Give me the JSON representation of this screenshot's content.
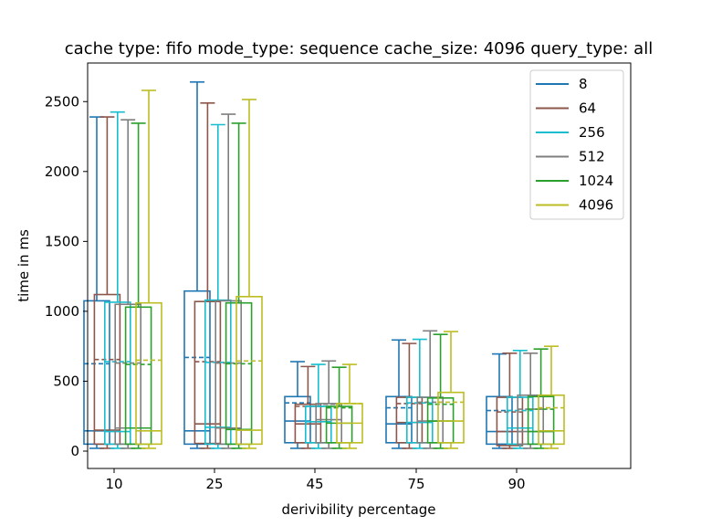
{
  "chart_data": {
    "type": "box",
    "title": "cache type: fifo mode_type: sequence cache_size: 4096 query_type: all",
    "xlabel": "derivibility percentage",
    "ylabel": "time in ms",
    "categories": [
      "10",
      "25",
      "45",
      "75",
      "90"
    ],
    "ylim": [
      -130,
      2800
    ],
    "yticks": [
      0,
      500,
      1000,
      1500,
      2000,
      2500
    ],
    "legend_position": "top-right",
    "series": [
      {
        "name": "8",
        "color": "#1f77b4",
        "boxes": [
          {
            "category": "10",
            "lo": 20,
            "q1": 50,
            "median": 145,
            "mean": 625,
            "q3": 1075,
            "hi": 2390
          },
          {
            "category": "25",
            "lo": 20,
            "q1": 50,
            "median": 145,
            "mean": 670,
            "q3": 1145,
            "hi": 2640
          },
          {
            "category": "45",
            "lo": 20,
            "q1": 60,
            "median": 215,
            "mean": 345,
            "q3": 390,
            "hi": 640
          },
          {
            "category": "75",
            "lo": 20,
            "q1": 60,
            "median": 195,
            "mean": 310,
            "q3": 390,
            "hi": 795
          },
          {
            "category": "90",
            "lo": 20,
            "q1": 50,
            "median": 140,
            "mean": 290,
            "q3": 390,
            "hi": 695
          }
        ]
      },
      {
        "name": "64",
        "color": "#8c564b",
        "boxes": [
          {
            "category": "10",
            "lo": 20,
            "q1": 50,
            "median": 150,
            "mean": 655,
            "q3": 1120,
            "hi": 2390
          },
          {
            "category": "25",
            "lo": 20,
            "q1": 55,
            "median": 195,
            "mean": 640,
            "q3": 1070,
            "hi": 2490
          },
          {
            "category": "45",
            "lo": 20,
            "q1": 60,
            "median": 195,
            "mean": 320,
            "q3": 335,
            "hi": 605
          },
          {
            "category": "75",
            "lo": 20,
            "q1": 60,
            "median": 205,
            "mean": 340,
            "q3": 385,
            "hi": 770
          },
          {
            "category": "90",
            "lo": 20,
            "q1": 40,
            "median": 140,
            "mean": 280,
            "q3": 385,
            "hi": 700
          }
        ]
      },
      {
        "name": "256",
        "color": "#17becf",
        "boxes": [
          {
            "category": "10",
            "lo": 20,
            "q1": 50,
            "median": 140,
            "mean": 640,
            "q3": 1065,
            "hi": 2425
          },
          {
            "category": "25",
            "lo": 20,
            "q1": 50,
            "median": 170,
            "mean": 635,
            "q3": 1080,
            "hi": 2335
          },
          {
            "category": "45",
            "lo": 20,
            "q1": 60,
            "median": 210,
            "mean": 320,
            "q3": 320,
            "hi": 620
          },
          {
            "category": "75",
            "lo": 20,
            "q1": 60,
            "median": 205,
            "mean": 345,
            "q3": 385,
            "hi": 800
          },
          {
            "category": "90",
            "lo": 20,
            "q1": 50,
            "median": 165,
            "mean": 290,
            "q3": 385,
            "hi": 720
          }
        ]
      },
      {
        "name": "512",
        "color": "#7f7f7f",
        "boxes": [
          {
            "category": "10",
            "lo": 20,
            "q1": 50,
            "median": 165,
            "mean": 630,
            "q3": 1050,
            "hi": 2370
          },
          {
            "category": "25",
            "lo": 20,
            "q1": 50,
            "median": 165,
            "mean": 630,
            "q3": 1075,
            "hi": 2410
          },
          {
            "category": "45",
            "lo": 20,
            "q1": 60,
            "median": 225,
            "mean": 335,
            "q3": 340,
            "hi": 645
          },
          {
            "category": "75",
            "lo": 20,
            "q1": 60,
            "median": 215,
            "mean": 350,
            "q3": 385,
            "hi": 860
          },
          {
            "category": "90",
            "lo": 20,
            "q1": 50,
            "median": 140,
            "mean": 300,
            "q3": 400,
            "hi": 700
          }
        ]
      },
      {
        "name": "1024",
        "color": "#2ca02c",
        "boxes": [
          {
            "category": "10",
            "lo": 20,
            "q1": 50,
            "median": 165,
            "mean": 620,
            "q3": 1030,
            "hi": 2345
          },
          {
            "category": "25",
            "lo": 20,
            "q1": 50,
            "median": 155,
            "mean": 625,
            "q3": 1060,
            "hi": 2345
          },
          {
            "category": "45",
            "lo": 20,
            "q1": 60,
            "median": 200,
            "mean": 310,
            "q3": 320,
            "hi": 600
          },
          {
            "category": "75",
            "lo": 20,
            "q1": 60,
            "median": 215,
            "mean": 335,
            "q3": 380,
            "hi": 835
          },
          {
            "category": "90",
            "lo": 20,
            "q1": 50,
            "median": 140,
            "mean": 300,
            "q3": 390,
            "hi": 730
          }
        ]
      },
      {
        "name": "4096",
        "color": "#bcbd22",
        "boxes": [
          {
            "category": "10",
            "lo": 20,
            "q1": 50,
            "median": 145,
            "mean": 650,
            "q3": 1060,
            "hi": 2580
          },
          {
            "category": "25",
            "lo": 20,
            "q1": 50,
            "median": 150,
            "mean": 645,
            "q3": 1105,
            "hi": 2515
          },
          {
            "category": "45",
            "lo": 20,
            "q1": 60,
            "median": 200,
            "mean": 340,
            "q3": 340,
            "hi": 620
          },
          {
            "category": "75",
            "lo": 20,
            "q1": 60,
            "median": 215,
            "mean": 350,
            "q3": 420,
            "hi": 855
          },
          {
            "category": "90",
            "lo": 20,
            "q1": 50,
            "median": 145,
            "mean": 310,
            "q3": 400,
            "hi": 750
          }
        ]
      }
    ]
  }
}
